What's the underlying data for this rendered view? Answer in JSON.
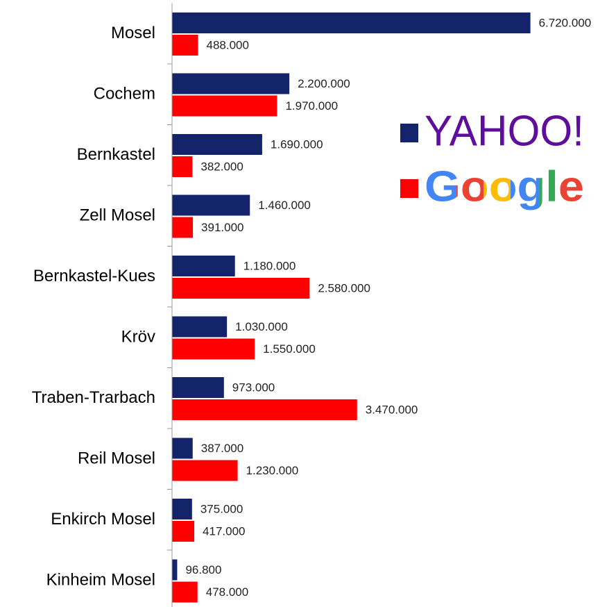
{
  "chart_data": {
    "type": "hbar",
    "categories": [
      "Mosel",
      "Cochem",
      "Bernkastel",
      "Zell Mosel",
      "Bernkastel-Kues",
      "Kröv",
      "Traben-Trarbach",
      "Reil Mosel",
      "Enkirch Mosel",
      "Kinheim Mosel"
    ],
    "series": [
      {
        "name": "YAHOO!",
        "color": "#13246b",
        "values": [
          6720000,
          2200000,
          1690000,
          1460000,
          1180000,
          1030000,
          973000,
          387000,
          375000,
          96800
        ],
        "value_labels": [
          "6.720.000",
          "2.200.000",
          "1.690.000",
          "1.460.000",
          "1.180.000",
          "1.030.000",
          "973.000",
          "387.000",
          "375.000",
          "96.800"
        ]
      },
      {
        "name": "Google",
        "color": "#ff0000",
        "values": [
          488000,
          1970000,
          382000,
          391000,
          2580000,
          1550000,
          3470000,
          1230000,
          417000,
          478000
        ],
        "value_labels": [
          "488.000",
          "1.970.000",
          "382.000",
          "391.000",
          "2.580.000",
          "1.550.000",
          "3.470.000",
          "1.230.000",
          "417.000",
          "478.000"
        ]
      }
    ],
    "xlim": [
      0,
      8000000
    ]
  }
}
